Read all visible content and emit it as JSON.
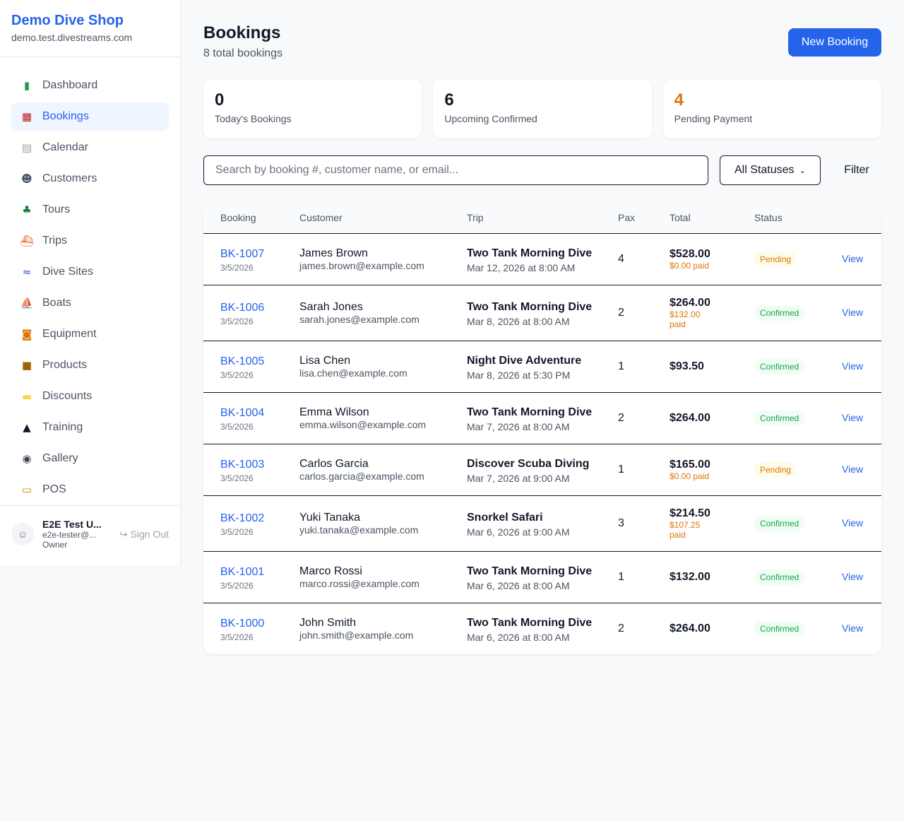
{
  "sidebar": {
    "shop_name": "Demo Dive Shop",
    "domain": "demo.test.divestreams.com",
    "items": [
      {
        "label": "Dashboard",
        "icon": "bar-chart-icon",
        "glyph": "▮",
        "color": "#16a34a"
      },
      {
        "label": "Bookings",
        "icon": "calendar-17-icon",
        "glyph": "▦",
        "color": "#b91c1c",
        "active": true
      },
      {
        "label": "Calendar",
        "icon": "spiral-calendar-icon",
        "glyph": "▤",
        "color": "#9ca3af"
      },
      {
        "label": "Customers",
        "icon": "busts-icon",
        "glyph": "☻",
        "color": "#475569"
      },
      {
        "label": "Tours",
        "icon": "desert-island-icon",
        "glyph": "♣",
        "color": "#15803d"
      },
      {
        "label": "Trips",
        "icon": "speedboat-icon",
        "glyph": "⛴",
        "color": "#ea580c"
      },
      {
        "label": "Dive Sites",
        "icon": "wave-icon",
        "glyph": "≈",
        "color": "#1d4ed8"
      },
      {
        "label": "Boats",
        "icon": "sailboat-icon",
        "glyph": "⛵",
        "color": "#dc2626"
      },
      {
        "label": "Equipment",
        "icon": "diving-mask-icon",
        "glyph": "◙",
        "color": "#d97706"
      },
      {
        "label": "Products",
        "icon": "package-icon",
        "glyph": "■",
        "color": "#a16207"
      },
      {
        "label": "Discounts",
        "icon": "tag-icon",
        "glyph": "▬",
        "color": "#fcd34d"
      },
      {
        "label": "Training",
        "icon": "graduation-cap-icon",
        "glyph": "▲",
        "color": "#111827"
      },
      {
        "label": "Gallery",
        "icon": "camera-flash-icon",
        "glyph": "◉",
        "color": "#374151"
      },
      {
        "label": "POS",
        "icon": "credit-card-icon",
        "glyph": "▭",
        "color": "#ca8a04"
      }
    ],
    "user": {
      "name": "E2E Test U...",
      "email": "e2e-tester@...",
      "role": "Owner",
      "sign_out": "Sign Out"
    }
  },
  "header": {
    "title": "Bookings",
    "subtitle": "8 total bookings",
    "new_button": "New Booking"
  },
  "stats": [
    {
      "value": "0",
      "label": "Today's Bookings",
      "color": "#111827"
    },
    {
      "value": "6",
      "label": "Upcoming Confirmed",
      "color": "#111827"
    },
    {
      "value": "4",
      "label": "Pending Payment",
      "color": "#d97706"
    }
  ],
  "filters": {
    "search_placeholder": "Search by booking #, customer name, or email...",
    "status_value": "All Statuses",
    "filter_label": "Filter"
  },
  "table": {
    "columns": [
      "Booking",
      "Customer",
      "Trip",
      "Pax",
      "Total",
      "Status",
      ""
    ],
    "view_label": "View",
    "rows": [
      {
        "id": "BK-1007",
        "date": "3/5/2026",
        "customer": "James Brown",
        "email": "james.brown@example.com",
        "trip": "Two Tank Morning Dive",
        "trip_date": "Mar 12, 2026 at 8:00 AM",
        "pax": "4",
        "total": "$528.00",
        "paid": "$0.00 paid",
        "status": "Pending"
      },
      {
        "id": "BK-1006",
        "date": "3/5/2026",
        "customer": "Sarah Jones",
        "email": "sarah.jones@example.com",
        "trip": "Two Tank Morning Dive",
        "trip_date": "Mar 8, 2026 at 8:00 AM",
        "pax": "2",
        "total": "$264.00",
        "paid": "$132.00 paid",
        "status": "Confirmed"
      },
      {
        "id": "BK-1005",
        "date": "3/5/2026",
        "customer": "Lisa Chen",
        "email": "lisa.chen@example.com",
        "trip": "Night Dive Adventure",
        "trip_date": "Mar 8, 2026 at 5:30 PM",
        "pax": "1",
        "total": "$93.50",
        "paid": "",
        "status": "Confirmed"
      },
      {
        "id": "BK-1004",
        "date": "3/5/2026",
        "customer": "Emma Wilson",
        "email": "emma.wilson@example.com",
        "trip": "Two Tank Morning Dive",
        "trip_date": "Mar 7, 2026 at 8:00 AM",
        "pax": "2",
        "total": "$264.00",
        "paid": "",
        "status": "Confirmed"
      },
      {
        "id": "BK-1003",
        "date": "3/5/2026",
        "customer": "Carlos Garcia",
        "email": "carlos.garcia@example.com",
        "trip": "Discover Scuba Diving",
        "trip_date": "Mar 7, 2026 at 9:00 AM",
        "pax": "1",
        "total": "$165.00",
        "paid": "$0.00 paid",
        "status": "Pending"
      },
      {
        "id": "BK-1002",
        "date": "3/5/2026",
        "customer": "Yuki Tanaka",
        "email": "yuki.tanaka@example.com",
        "trip": "Snorkel Safari",
        "trip_date": "Mar 6, 2026 at 9:00 AM",
        "pax": "3",
        "total": "$214.50",
        "paid": "$107.25 paid",
        "status": "Confirmed"
      },
      {
        "id": "BK-1001",
        "date": "3/5/2026",
        "customer": "Marco Rossi",
        "email": "marco.rossi@example.com",
        "trip": "Two Tank Morning Dive",
        "trip_date": "Mar 6, 2026 at 8:00 AM",
        "pax": "1",
        "total": "$132.00",
        "paid": "",
        "status": "Confirmed"
      },
      {
        "id": "BK-1000",
        "date": "3/5/2026",
        "customer": "John Smith",
        "email": "john.smith@example.com",
        "trip": "Two Tank Morning Dive",
        "trip_date": "Mar 6, 2026 at 8:00 AM",
        "pax": "2",
        "total": "$264.00",
        "paid": "",
        "status": "Confirmed"
      }
    ]
  }
}
